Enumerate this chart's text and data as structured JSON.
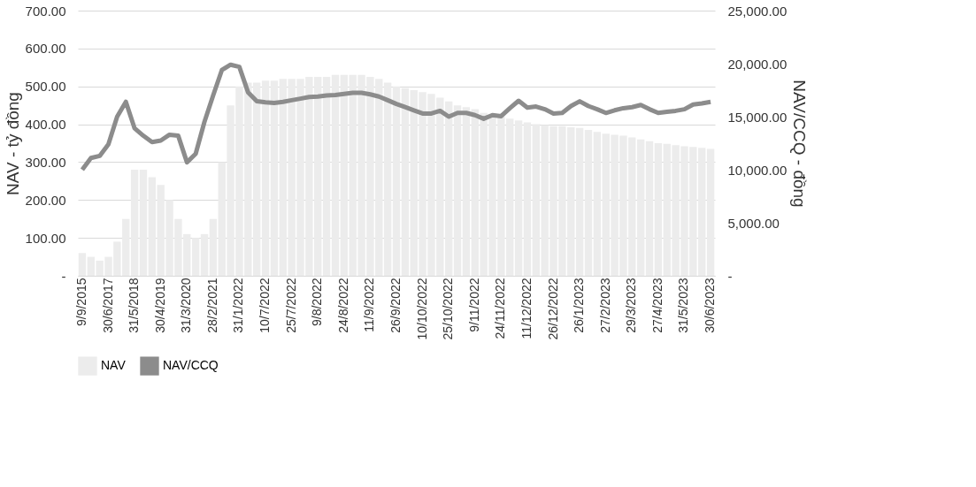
{
  "chart_data": {
    "type": "bar",
    "xlabel": null,
    "ylabel": "NAV - tỷ đồng",
    "y2label": "NAV/CCQ - đồng",
    "categories": [
      "9/9/2015",
      null,
      null,
      "30/6/2017",
      null,
      null,
      "31/5/2018",
      null,
      null,
      "30/4/2019",
      null,
      null,
      "31/3/2020",
      null,
      null,
      "28/2/2021",
      null,
      null,
      "31/1/2022",
      null,
      null,
      "10/7/2022",
      null,
      null,
      "25/7/2022",
      null,
      null,
      "9/8/2022",
      null,
      null,
      "24/8/2022",
      null,
      null,
      "11/9/2022",
      null,
      null,
      "26/9/2022",
      null,
      null,
      "10/10/2022",
      null,
      null,
      "25/10/2022",
      null,
      null,
      "9/11/2022",
      null,
      null,
      "24/11/2022",
      null,
      null,
      "11/12/2022",
      null,
      null,
      "26/12/2022",
      null,
      null,
      "26/1/2023",
      null,
      null,
      "27/2/2023",
      null,
      null,
      "29/3/2023",
      null,
      null,
      "27/4/2023",
      null,
      null,
      "31/5/2023",
      null,
      null,
      "30/6/2023"
    ],
    "series": [
      {
        "name": "NAV",
        "color": "#ececec",
        "values": [
          60,
          50,
          40,
          50,
          90,
          150,
          280,
          280,
          260,
          240,
          200,
          150,
          110,
          100,
          110,
          150,
          300,
          450,
          500,
          510,
          510,
          515,
          515,
          520,
          520,
          520,
          525,
          525,
          525,
          530,
          530,
          530,
          530,
          525,
          520,
          510,
          500,
          495,
          490,
          485,
          480,
          470,
          460,
          450,
          445,
          440,
          430,
          425,
          420,
          415,
          410,
          405,
          400,
          398,
          395,
          395,
          392,
          390,
          385,
          380,
          375,
          372,
          370,
          365,
          360,
          355,
          350,
          348,
          345,
          342,
          340,
          338,
          335
        ]
      },
      {
        "name": "NAV/CCQ",
        "type": "line",
        "axis": "y2",
        "color": "#8c8c8c",
        "values": [
          10000,
          11100,
          11300,
          12400,
          15000,
          16400,
          13900,
          13200,
          12600,
          12750,
          13300,
          13200,
          10700,
          11500,
          14500,
          17000,
          19400,
          19900,
          19700,
          17300,
          16450,
          16350,
          16300,
          16400,
          16550,
          16700,
          16850,
          16900,
          17000,
          17050,
          17150,
          17250,
          17250,
          17100,
          16900,
          16550,
          16200,
          15900,
          15600,
          15300,
          15300,
          15550,
          15000,
          15350,
          15350,
          15150,
          14800,
          15150,
          15050,
          15800,
          16500,
          15850,
          15950,
          15700,
          15300,
          15350,
          16000,
          16450,
          16000,
          15700,
          15350,
          15600,
          15800,
          15900,
          16100,
          15700,
          15350,
          15450,
          15550,
          15700,
          16150,
          16250,
          16400
        ]
      }
    ],
    "ylim": [
      0,
      700
    ],
    "yticks": [
      {
        "value": 0,
        "label": "-"
      },
      {
        "value": 100,
        "label": "100.00"
      },
      {
        "value": 200,
        "label": "200.00"
      },
      {
        "value": 300,
        "label": "300.00"
      },
      {
        "value": 400,
        "label": "400.00"
      },
      {
        "value": 500,
        "label": "500.00"
      },
      {
        "value": 600,
        "label": "600.00"
      },
      {
        "value": 700,
        "label": "700.00"
      }
    ],
    "y2lim": [
      0,
      25000
    ],
    "y2ticks": [
      {
        "value": 0,
        "label": "-"
      },
      {
        "value": 5000,
        "label": "5,000.00"
      },
      {
        "value": 10000,
        "label": "10,000.00"
      },
      {
        "value": 15000,
        "label": "15,000.00"
      },
      {
        "value": 20000,
        "label": "20,000.00"
      },
      {
        "value": 25000,
        "label": "25,000.00"
      }
    ],
    "grid": "y",
    "legend": "bottom",
    "line_style": "solid",
    "marker": "none"
  }
}
